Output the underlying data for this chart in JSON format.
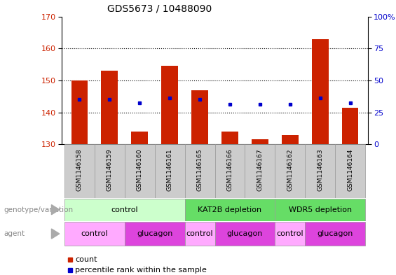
{
  "title": "GDS5673 / 10488090",
  "samples": [
    "GSM1146158",
    "GSM1146159",
    "GSM1146160",
    "GSM1146161",
    "GSM1146165",
    "GSM1146166",
    "GSM1146167",
    "GSM1146162",
    "GSM1146163",
    "GSM1146164"
  ],
  "bar_tops": [
    150,
    153,
    134,
    154.5,
    147,
    134,
    131.5,
    133,
    163,
    141.5
  ],
  "bar_bottoms": [
    130,
    130,
    130,
    130,
    130,
    130,
    130,
    130,
    130,
    130
  ],
  "percentile_values": [
    144,
    144,
    143,
    144.5,
    144,
    142.5,
    142.5,
    142.5,
    144.5,
    143
  ],
  "ylim_left": [
    130,
    170
  ],
  "ylim_right": [
    0,
    100
  ],
  "yticks_left": [
    130,
    140,
    150,
    160,
    170
  ],
  "yticks_right": [
    0,
    25,
    50,
    75,
    100
  ],
  "bar_color": "#cc2200",
  "dot_color": "#0000cc",
  "sample_bg_color": "#cccccc",
  "sample_border_color": "#999999",
  "genotype_groups": [
    {
      "label": "control",
      "start": 0,
      "end": 3,
      "color": "#ccffcc"
    },
    {
      "label": "KAT2B depletion",
      "start": 4,
      "end": 6,
      "color": "#66dd66"
    },
    {
      "label": "WDR5 depletion",
      "start": 7,
      "end": 9,
      "color": "#66dd66"
    }
  ],
  "agent_groups": [
    {
      "label": "control",
      "start": 0,
      "end": 1,
      "color": "#ffaaff"
    },
    {
      "label": "glucagon",
      "start": 2,
      "end": 3,
      "color": "#dd44dd"
    },
    {
      "label": "control",
      "start": 4,
      "end": 4,
      "color": "#ffaaff"
    },
    {
      "label": "glucagon",
      "start": 5,
      "end": 6,
      "color": "#dd44dd"
    },
    {
      "label": "control",
      "start": 7,
      "end": 7,
      "color": "#ffaaff"
    },
    {
      "label": "glucagon",
      "start": 8,
      "end": 9,
      "color": "#dd44dd"
    }
  ],
  "legend_count_color": "#cc2200",
  "legend_dot_color": "#0000cc",
  "left_label_color": "#cc2200",
  "right_label_color": "#0000cc",
  "grid_color": "#000000",
  "background_color": "#ffffff",
  "label_color": "#888888",
  "arrow_color": "#aaaaaa"
}
